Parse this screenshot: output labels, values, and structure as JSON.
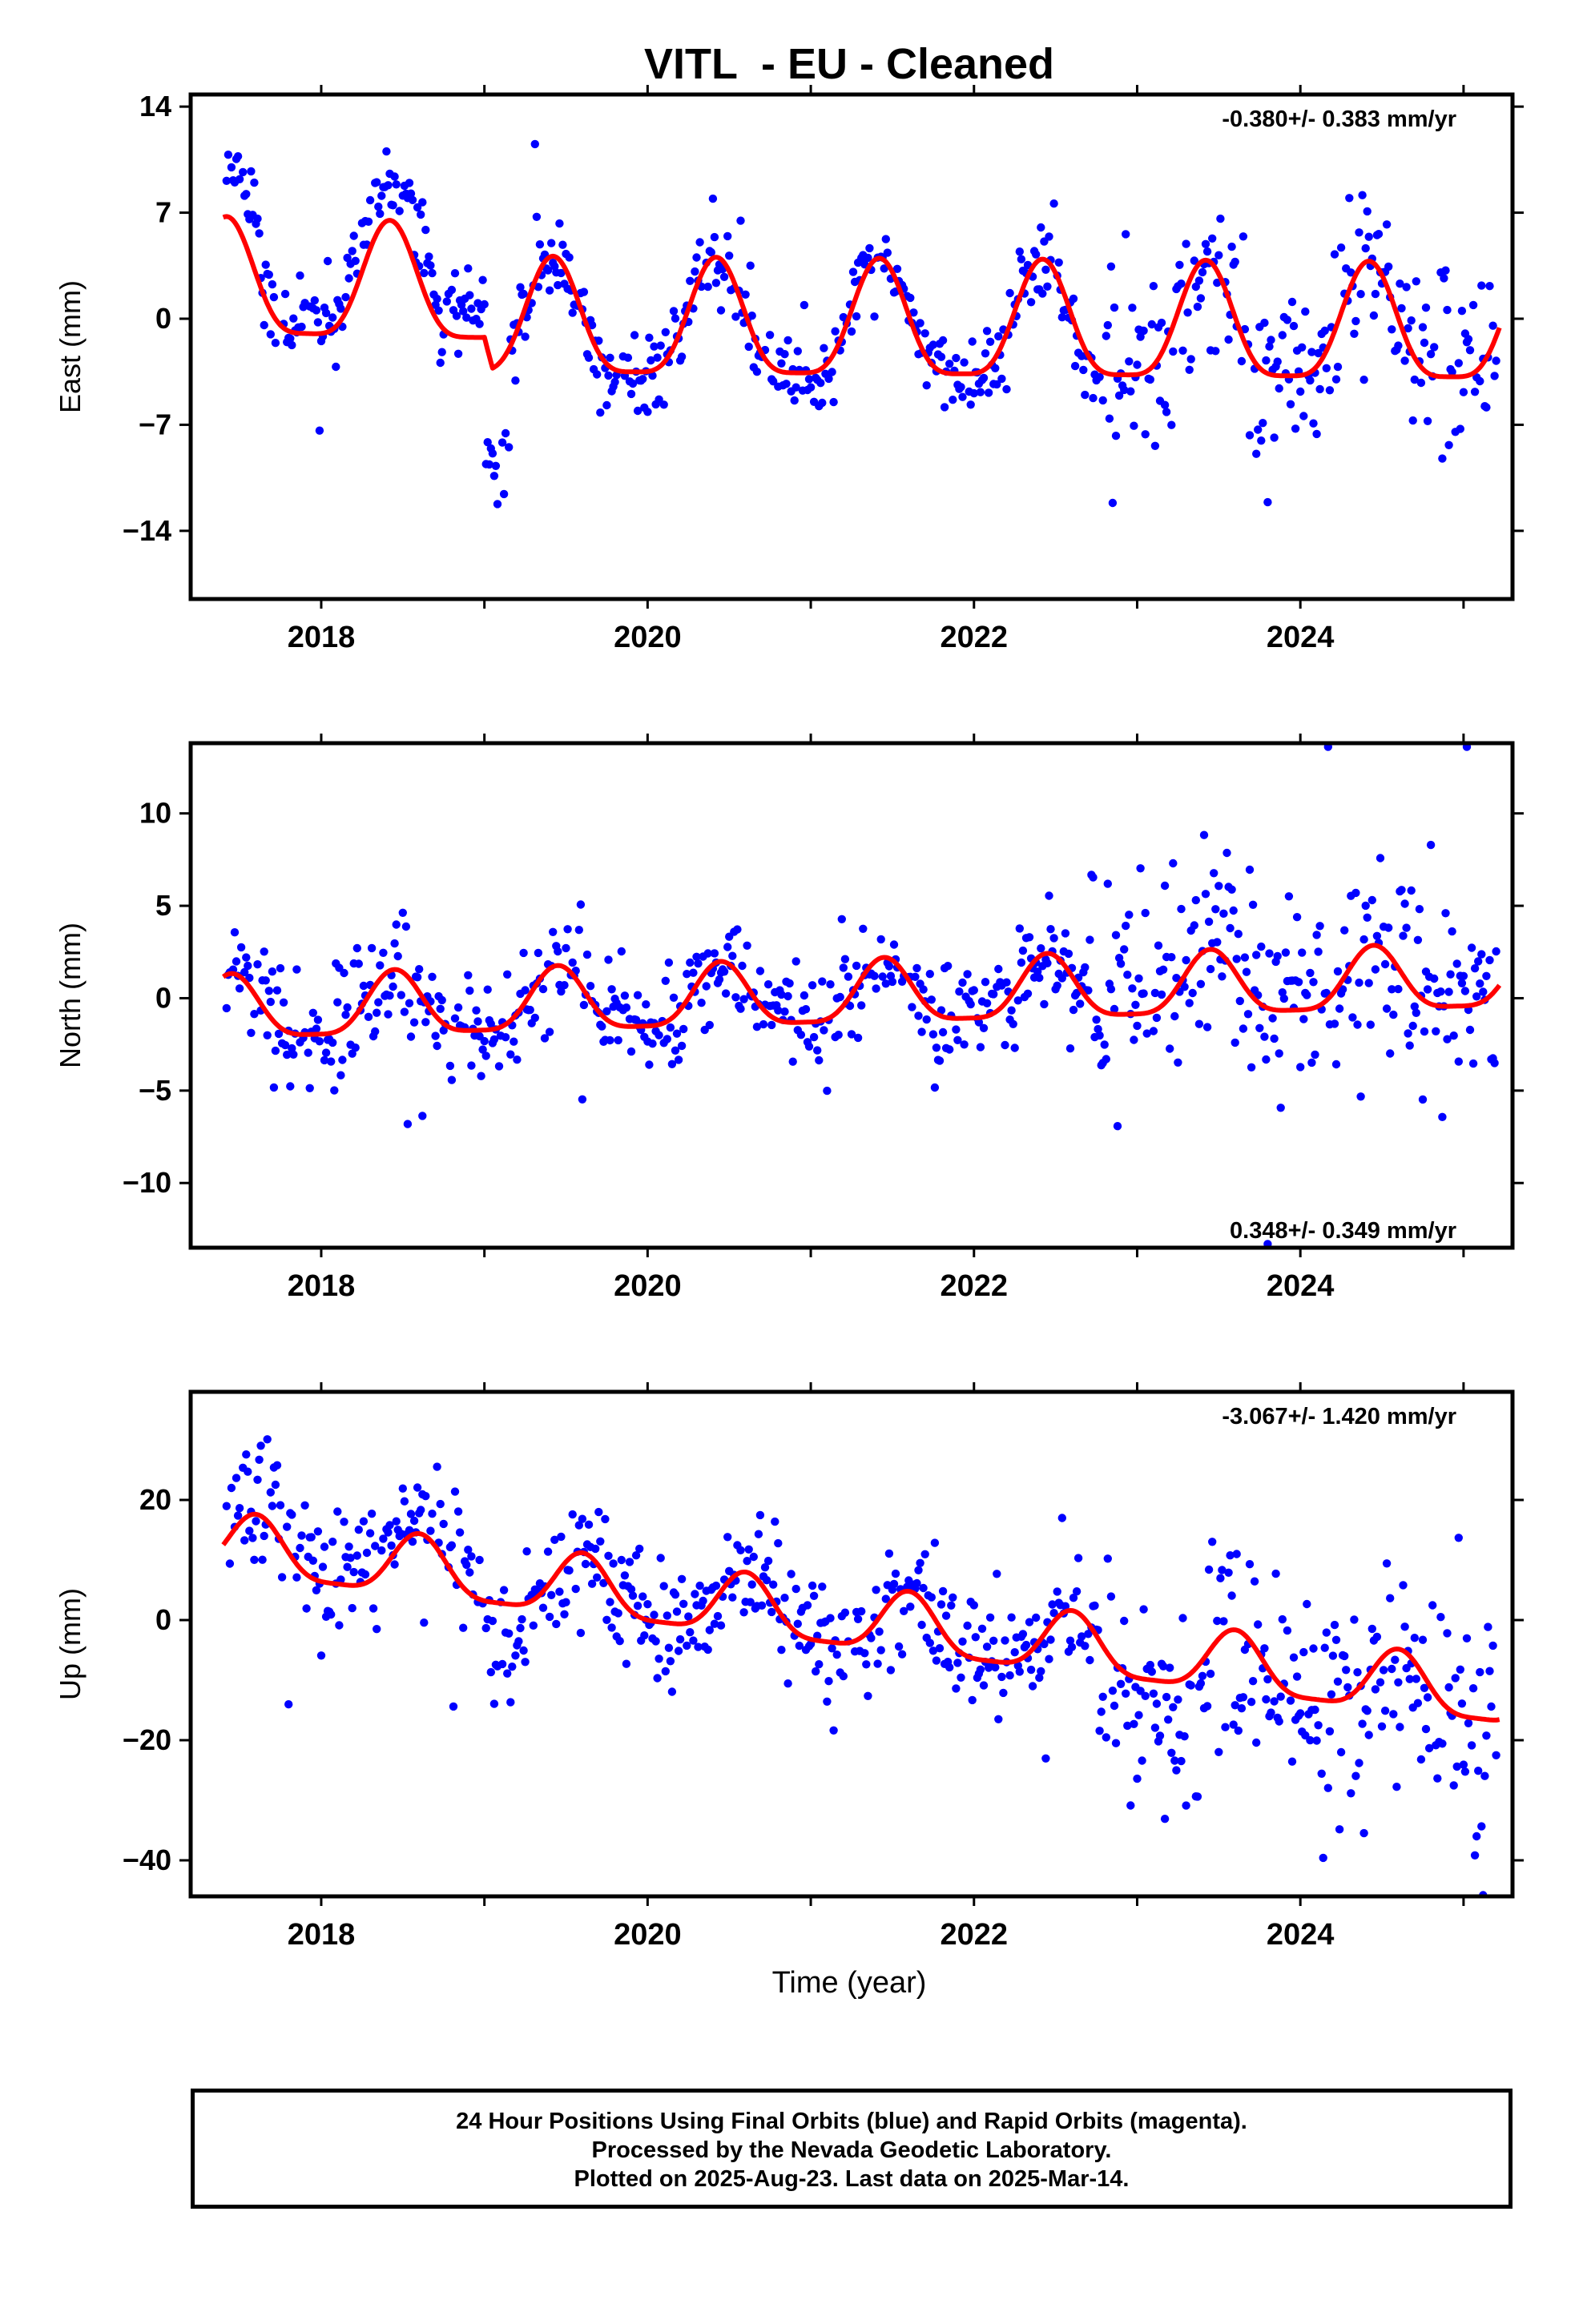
{
  "title": "VITL  - EU - Cleaned",
  "xlabel": "Time (year)",
  "footer": {
    "line1": "24 Hour Positions Using Final Orbits (blue) and Rapid Orbits (magenta).",
    "line2": "Processed by the Nevada Geodetic Laboratory.",
    "line3": "Plotted on 2025-Aug-23. Last data on 2025-Mar-14."
  },
  "colors": {
    "points": "#0000ff",
    "fit": "#ff0000",
    "frame": "#000000"
  },
  "chart_data": [
    {
      "type": "scatter",
      "panel": "east",
      "ylabel": "East (mm)",
      "rate_text": "-0.380+/- 0.383 mm/yr",
      "rate_position": "top-right",
      "xlim": [
        2017.2,
        2025.3
      ],
      "ylim": [
        -18.5,
        14.8
      ],
      "yticks": [
        14,
        7,
        0,
        -7,
        -14
      ],
      "xticks": [
        2018,
        2020,
        2022,
        2024
      ],
      "start": 2017.42,
      "end": 2025.2,
      "step": 0.01,
      "seed": 11,
      "fit": {
        "base": [
          [
            2017.4,
            2.0
          ],
          [
            2019.0,
            1.6
          ],
          [
            2019.05,
            -0.6
          ],
          [
            2025.2,
            -1.0
          ]
        ],
        "amp": 3.8,
        "phase": 2018.42
      },
      "noise": 1.6,
      "outlier_rate": 0.04,
      "outlier_scale": 3.5,
      "segments": [
        {
          "from": 2017.42,
          "to": 2017.62,
          "offset": 3.5,
          "noise": 1.2
        },
        {
          "from": 2017.62,
          "to": 2018.15,
          "offset": 0.8,
          "noise": 1.4
        },
        {
          "from": 2018.15,
          "to": 2018.7,
          "offset": 2.5,
          "noise": 1.3
        },
        {
          "from": 2018.7,
          "to": 2019.0,
          "offset": 1.8,
          "noise": 1.5
        },
        {
          "from": 2019.0,
          "to": 2019.15,
          "offset": -6.5,
          "noise": 1.5
        },
        {
          "from": 2019.15,
          "to": 2022.7,
          "offset": 0.0,
          "noise": 1.4
        },
        {
          "from": 2022.7,
          "to": 2025.2,
          "offset": 0.0,
          "noise": 3.0
        }
      ]
    },
    {
      "type": "scatter",
      "panel": "north",
      "ylabel": "North (mm)",
      "rate_text": "0.348+/- 0.349 mm/yr",
      "rate_position": "bottom-right",
      "xlim": [
        2017.2,
        2025.3
      ],
      "ylim": [
        -13.5,
        13.8
      ],
      "yticks": [
        10,
        5,
        0,
        -5,
        -10
      ],
      "xticks": [
        2018,
        2020,
        2022,
        2024
      ],
      "start": 2017.42,
      "end": 2025.2,
      "step": 0.01,
      "seed": 23,
      "fit": {
        "base": [
          [
            2017.4,
            -0.8
          ],
          [
            2025.2,
            0.9
          ]
        ],
        "amp": 1.7,
        "phase": 2018.45
      },
      "noise": 1.5,
      "outlier_rate": 0.03,
      "outlier_scale": 3.0,
      "segments": [
        {
          "from": 2017.42,
          "to": 2022.7,
          "offset": 0.0,
          "noise": 1.4
        },
        {
          "from": 2022.7,
          "to": 2025.2,
          "offset": 0.6,
          "noise": 2.8
        }
      ]
    },
    {
      "type": "scatter",
      "panel": "up",
      "ylabel": "Up (mm)",
      "rate_text": "-3.067+/- 1.420 mm/yr",
      "rate_position": "top-right",
      "xlim": [
        2017.2,
        2025.3
      ],
      "ylim": [
        -46,
        38
      ],
      "yticks": [
        20,
        0,
        -20,
        -40
      ],
      "xticks": [
        2018,
        2020,
        2022,
        2024
      ],
      "start": 2017.42,
      "end": 2025.2,
      "step": 0.01,
      "seed": 37,
      "fit": {
        "base": [
          [
            2017.4,
            12.0
          ],
          [
            2025.2,
            -13.0
          ]
        ],
        "amp": 5.0,
        "phase": 2017.6
      },
      "noise": 5.0,
      "outlier_rate": 0.03,
      "outlier_scale": 2.5,
      "segments": [
        {
          "from": 2017.42,
          "to": 2019.0,
          "offset": 3.0,
          "noise": 5.0
        },
        {
          "from": 2019.0,
          "to": 2019.25,
          "offset": -8.0,
          "noise": 5.5
        },
        {
          "from": 2019.25,
          "to": 2022.7,
          "offset": 0.0,
          "noise": 5.0
        },
        {
          "from": 2022.7,
          "to": 2025.2,
          "offset": -3.0,
          "noise": 9.0
        }
      ]
    }
  ]
}
